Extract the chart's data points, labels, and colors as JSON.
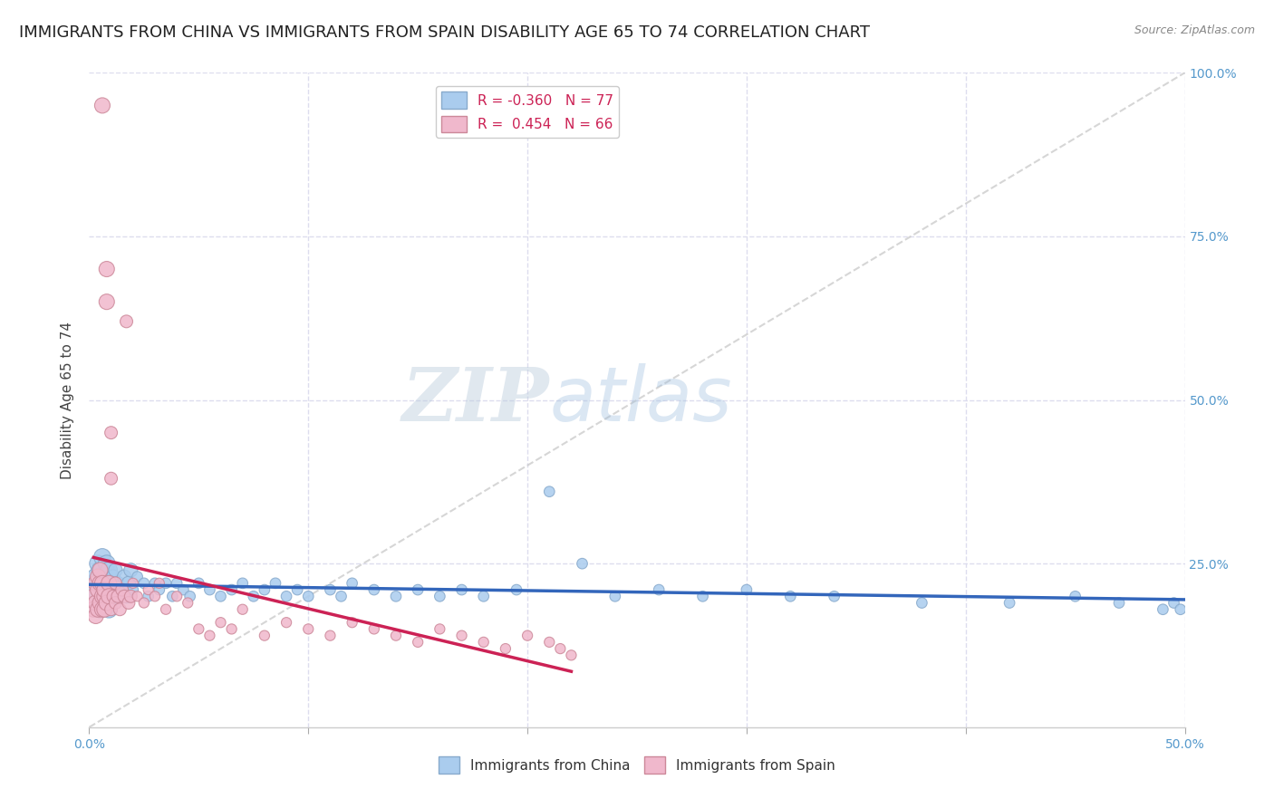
{
  "title": "IMMIGRANTS FROM CHINA VS IMMIGRANTS FROM SPAIN DISABILITY AGE 65 TO 74 CORRELATION CHART",
  "source": "Source: ZipAtlas.com",
  "ylabel": "Disability Age 65 to 74",
  "xlim": [
    0.0,
    0.5
  ],
  "ylim": [
    0.0,
    1.0
  ],
  "china_color": "#aaccee",
  "china_edge": "#88aacc",
  "spain_color": "#f0b8cc",
  "spain_edge": "#cc8899",
  "china_line_color": "#3366bb",
  "spain_line_color": "#cc2255",
  "ref_line_color": "#cccccc",
  "legend_china_R": "-0.360",
  "legend_china_N": "77",
  "legend_spain_R": "0.454",
  "legend_spain_N": "66",
  "legend_label_china": "Immigrants from China",
  "legend_label_spain": "Immigrants from Spain",
  "watermark_zip": "ZIP",
  "watermark_atlas": "atlas",
  "background_color": "#ffffff",
  "grid_color": "#ddddee",
  "title_fontsize": 13,
  "axis_label_fontsize": 11,
  "tick_fontsize": 10,
  "legend_fontsize": 11,
  "china_x": [
    0.002,
    0.003,
    0.003,
    0.004,
    0.004,
    0.005,
    0.005,
    0.005,
    0.006,
    0.006,
    0.006,
    0.007,
    0.007,
    0.007,
    0.008,
    0.008,
    0.008,
    0.009,
    0.009,
    0.01,
    0.01,
    0.011,
    0.012,
    0.012,
    0.013,
    0.015,
    0.016,
    0.017,
    0.018,
    0.019,
    0.02,
    0.022,
    0.025,
    0.027,
    0.03,
    0.032,
    0.035,
    0.038,
    0.04,
    0.043,
    0.046,
    0.05,
    0.055,
    0.06,
    0.065,
    0.07,
    0.075,
    0.08,
    0.085,
    0.09,
    0.095,
    0.1,
    0.11,
    0.115,
    0.12,
    0.13,
    0.14,
    0.15,
    0.16,
    0.17,
    0.18,
    0.195,
    0.21,
    0.225,
    0.24,
    0.26,
    0.28,
    0.3,
    0.32,
    0.34,
    0.38,
    0.42,
    0.45,
    0.47,
    0.49,
    0.495,
    0.498
  ],
  "china_y": [
    0.22,
    0.2,
    0.23,
    0.25,
    0.19,
    0.21,
    0.24,
    0.18,
    0.26,
    0.2,
    0.22,
    0.19,
    0.23,
    0.21,
    0.25,
    0.2,
    0.22,
    0.24,
    0.18,
    0.22,
    0.21,
    0.23,
    0.2,
    0.24,
    0.22,
    0.21,
    0.23,
    0.2,
    0.22,
    0.24,
    0.21,
    0.23,
    0.22,
    0.2,
    0.22,
    0.21,
    0.22,
    0.2,
    0.22,
    0.21,
    0.2,
    0.22,
    0.21,
    0.2,
    0.21,
    0.22,
    0.2,
    0.21,
    0.22,
    0.2,
    0.21,
    0.2,
    0.21,
    0.2,
    0.22,
    0.21,
    0.2,
    0.21,
    0.2,
    0.21,
    0.2,
    0.21,
    0.36,
    0.25,
    0.2,
    0.21,
    0.2,
    0.21,
    0.2,
    0.2,
    0.19,
    0.19,
    0.2,
    0.19,
    0.18,
    0.19,
    0.18
  ],
  "spain_x": [
    0.002,
    0.002,
    0.003,
    0.003,
    0.003,
    0.004,
    0.004,
    0.004,
    0.005,
    0.005,
    0.005,
    0.006,
    0.006,
    0.006,
    0.006,
    0.007,
    0.007,
    0.007,
    0.008,
    0.008,
    0.008,
    0.009,
    0.009,
    0.01,
    0.01,
    0.01,
    0.011,
    0.012,
    0.012,
    0.013,
    0.014,
    0.015,
    0.016,
    0.017,
    0.018,
    0.019,
    0.02,
    0.022,
    0.025,
    0.027,
    0.03,
    0.032,
    0.035,
    0.04,
    0.045,
    0.05,
    0.055,
    0.06,
    0.065,
    0.07,
    0.08,
    0.09,
    0.1,
    0.11,
    0.12,
    0.13,
    0.14,
    0.15,
    0.16,
    0.17,
    0.18,
    0.19,
    0.2,
    0.21,
    0.215,
    0.22
  ],
  "spain_y": [
    0.2,
    0.18,
    0.22,
    0.17,
    0.19,
    0.23,
    0.18,
    0.21,
    0.19,
    0.22,
    0.24,
    0.2,
    0.18,
    0.95,
    0.22,
    0.2,
    0.18,
    0.21,
    0.7,
    0.65,
    0.19,
    0.22,
    0.2,
    0.45,
    0.38,
    0.18,
    0.2,
    0.19,
    0.22,
    0.2,
    0.18,
    0.21,
    0.2,
    0.62,
    0.19,
    0.2,
    0.22,
    0.2,
    0.19,
    0.21,
    0.2,
    0.22,
    0.18,
    0.2,
    0.19,
    0.15,
    0.14,
    0.16,
    0.15,
    0.18,
    0.14,
    0.16,
    0.15,
    0.14,
    0.16,
    0.15,
    0.14,
    0.13,
    0.15,
    0.14,
    0.13,
    0.12,
    0.14,
    0.13,
    0.12,
    0.11
  ]
}
